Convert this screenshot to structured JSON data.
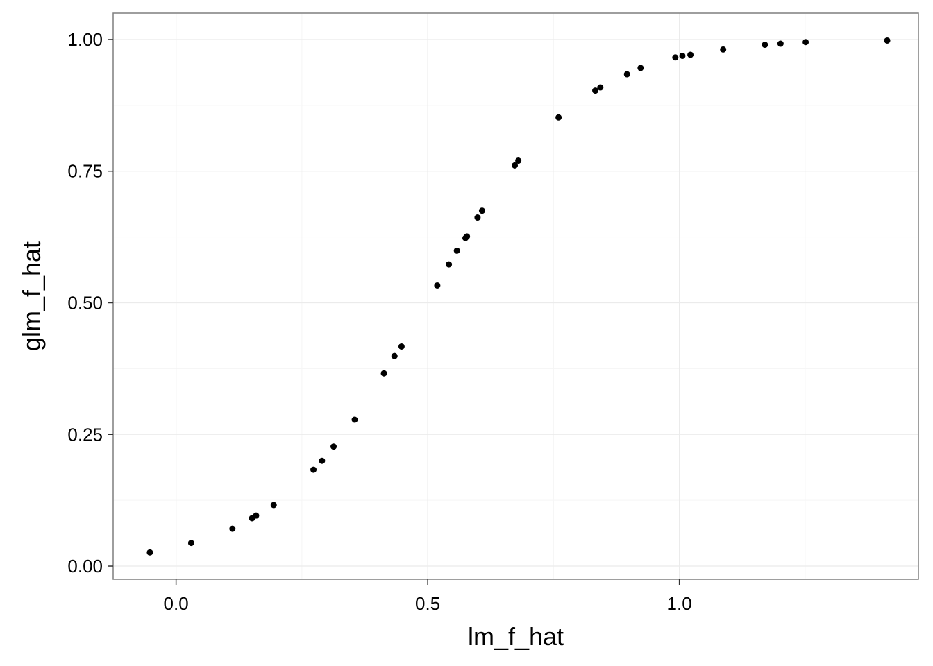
{
  "chart_data": {
    "type": "scatter",
    "title": "",
    "xlabel": "lm_f_hat",
    "ylabel": "glm_f_hat",
    "xlim": [
      -0.125,
      1.475
    ],
    "ylim": [
      -0.025,
      1.05
    ],
    "x_ticks": [
      0.0,
      0.5,
      1.0
    ],
    "x_tick_labels": [
      "0.0",
      "0.5",
      "1.0"
    ],
    "y_ticks": [
      0.0,
      0.25,
      0.5,
      0.75,
      1.0
    ],
    "y_tick_labels": [
      "0.00",
      "0.25",
      "0.50",
      "0.75",
      "1.00"
    ],
    "grid": true,
    "legend": "none",
    "colors": {
      "point": "#000000",
      "panel_border": "#7f7f7f",
      "grid_major": "#ebebeb",
      "grid_minor": "#f5f5f5",
      "background": "#ffffff"
    },
    "points": [
      {
        "x": -0.052,
        "y": 0.026
      },
      {
        "x": 0.03,
        "y": 0.044
      },
      {
        "x": 0.112,
        "y": 0.071
      },
      {
        "x": 0.151,
        "y": 0.091
      },
      {
        "x": 0.159,
        "y": 0.096
      },
      {
        "x": 0.194,
        "y": 0.116
      },
      {
        "x": 0.273,
        "y": 0.183
      },
      {
        "x": 0.29,
        "y": 0.2
      },
      {
        "x": 0.313,
        "y": 0.227
      },
      {
        "x": 0.355,
        "y": 0.278
      },
      {
        "x": 0.413,
        "y": 0.366
      },
      {
        "x": 0.434,
        "y": 0.399
      },
      {
        "x": 0.448,
        "y": 0.417
      },
      {
        "x": 0.519,
        "y": 0.533
      },
      {
        "x": 0.542,
        "y": 0.573
      },
      {
        "x": 0.558,
        "y": 0.599
      },
      {
        "x": 0.575,
        "y": 0.623
      },
      {
        "x": 0.578,
        "y": 0.626
      },
      {
        "x": 0.599,
        "y": 0.662
      },
      {
        "x": 0.608,
        "y": 0.675
      },
      {
        "x": 0.673,
        "y": 0.761
      },
      {
        "x": 0.68,
        "y": 0.77
      },
      {
        "x": 0.76,
        "y": 0.852
      },
      {
        "x": 0.833,
        "y": 0.903
      },
      {
        "x": 0.843,
        "y": 0.909
      },
      {
        "x": 0.896,
        "y": 0.934
      },
      {
        "x": 0.923,
        "y": 0.946
      },
      {
        "x": 0.992,
        "y": 0.966
      },
      {
        "x": 1.006,
        "y": 0.969
      },
      {
        "x": 1.022,
        "y": 0.971
      },
      {
        "x": 1.087,
        "y": 0.981
      },
      {
        "x": 1.17,
        "y": 0.99
      },
      {
        "x": 1.201,
        "y": 0.992
      },
      {
        "x": 1.251,
        "y": 0.995
      },
      {
        "x": 1.413,
        "y": 0.998
      }
    ]
  }
}
